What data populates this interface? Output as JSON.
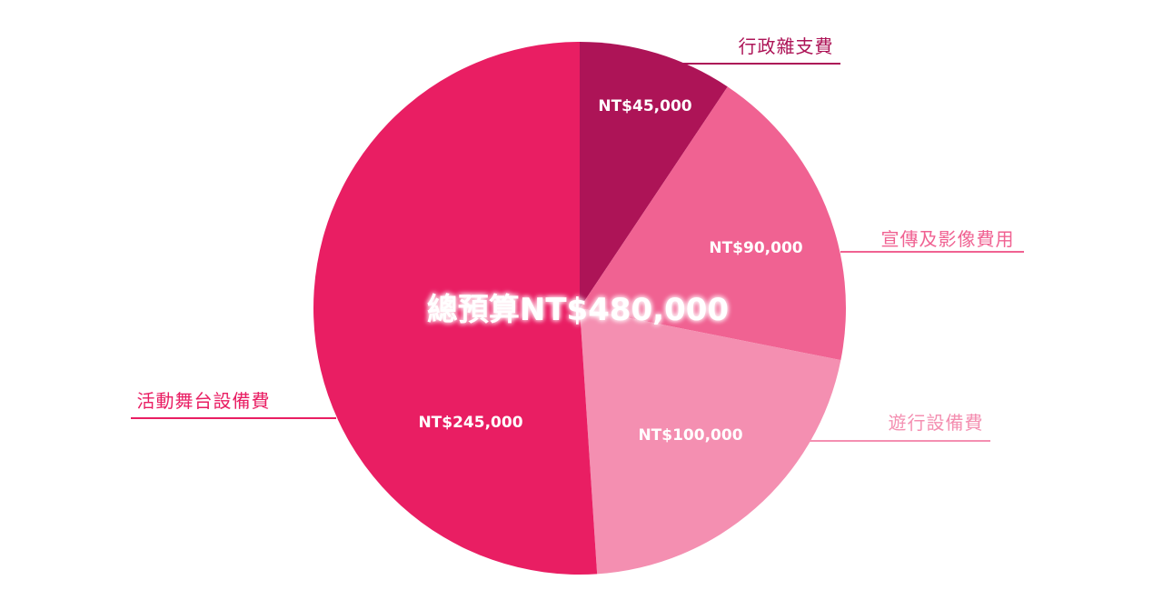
{
  "chart_data": {
    "type": "pie",
    "title": "總預算NT$480,000",
    "unit": "NT$",
    "slices": [
      {
        "label": "行政雜支費",
        "value": 45000,
        "value_label": "NT$45,000",
        "color": "#ad1457",
        "line_color": "#ad1457"
      },
      {
        "label": "宣傳及影像費用",
        "value": 90000,
        "value_label": "NT$90,000",
        "color": "#f06292",
        "line_color": "#f06292"
      },
      {
        "label": "遊行設備費",
        "value": 100000,
        "value_label": "NT$100,000",
        "color": "#f48fb1",
        "line_color": "#f48fb1"
      },
      {
        "label": "活動舞台設備費",
        "value": 245000,
        "value_label": "NT$245,000",
        "color": "#e91e63",
        "line_color": "#e91e63"
      }
    ]
  }
}
